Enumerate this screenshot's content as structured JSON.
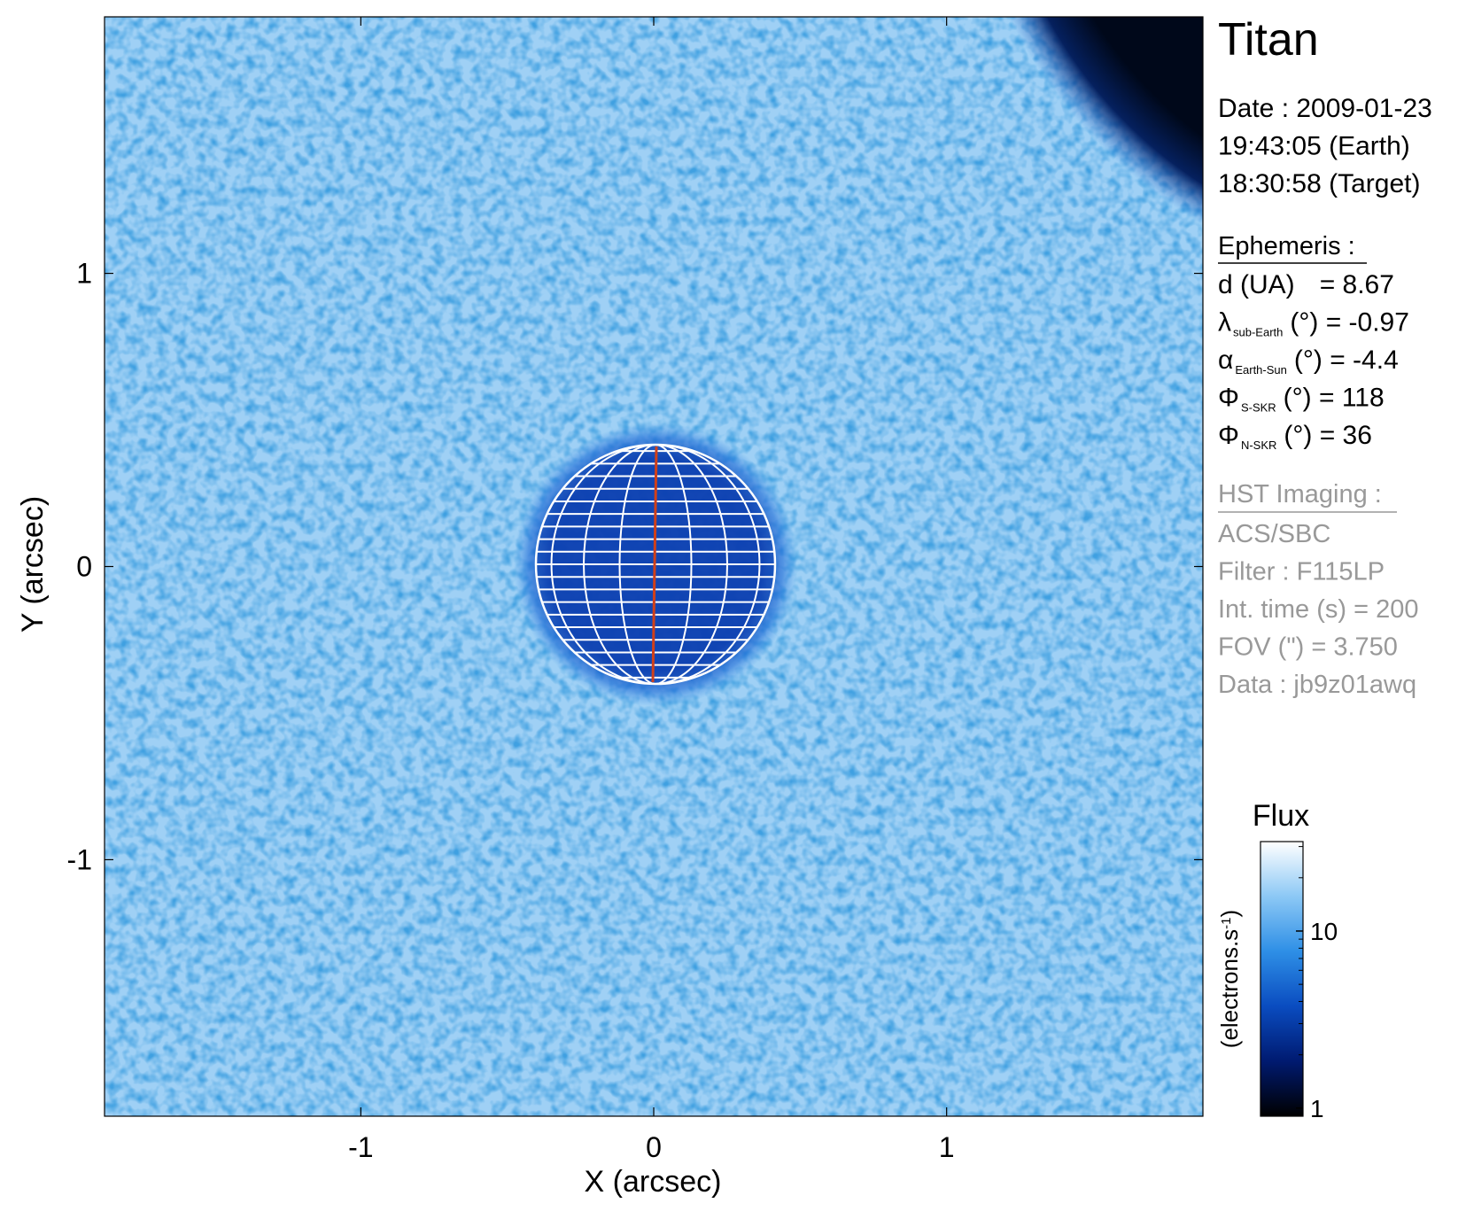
{
  "chart_data": {
    "type": "image",
    "xlabel": "X (arcsec)",
    "ylabel": "Y (arcsec)",
    "xlim": [
      -1.875,
      1.875
    ],
    "ylim": [
      -1.875,
      1.875
    ],
    "xticks": [
      -1,
      0,
      1
    ],
    "yticks": [
      -1,
      0,
      1
    ],
    "colorbar": {
      "title": "Flux",
      "label": "(electrons.s",
      "label_sup": "-1",
      "label_end": ")",
      "log": true,
      "clim": [
        0.9,
        32
      ],
      "ticks": [
        1,
        10
      ],
      "colormap": [
        "#000000",
        "#001a70",
        "#0a4cc0",
        "#2e8fe6",
        "#8cc8f5",
        "#ffffff"
      ]
    },
    "info": {
      "title": "Titan",
      "date_lines": [
        "Date : 2009-01-23",
        "19:43:05 (Earth)",
        "18:30:58 (Target)"
      ],
      "ephemeris_heading": "Ephemeris :",
      "ephemeris": [
        {
          "symbol": "d (UA)",
          "sub": "",
          "text": "= 8.67"
        },
        {
          "symbol": "λ",
          "sub": "sub-Earth",
          "text": "(°) = -0.97"
        },
        {
          "symbol": "α",
          "sub": "Earth-Sun",
          "text": "(°) = -4.4"
        },
        {
          "symbol": "Φ",
          "sub": "S-SKR",
          "text": "(°)   = 118"
        },
        {
          "symbol": "Φ",
          "sub": "N-SKR",
          "text": "(°)   = 36"
        }
      ],
      "imaging_heading": "HST Imaging :",
      "imaging": [
        "ACS/SBC",
        "Filter : F115LP",
        "Int. time (s) = 200",
        "FOV (\") = 3.750",
        "Data : jb9z01awq"
      ]
    }
  }
}
